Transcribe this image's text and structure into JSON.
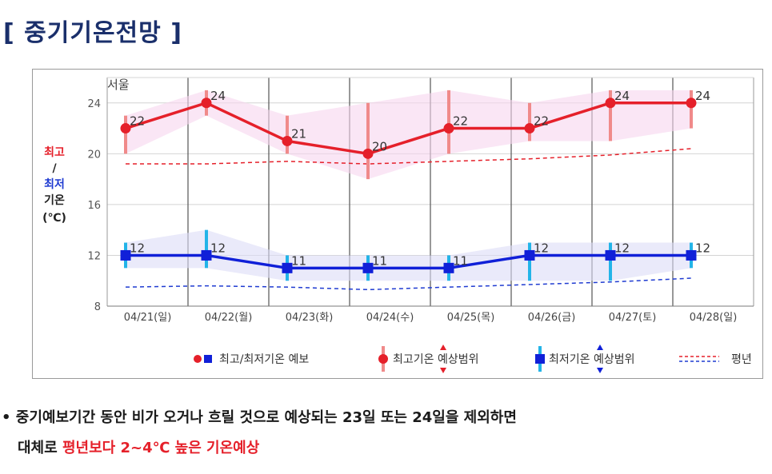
{
  "page": {
    "title": "[ 중기기온전망 ]"
  },
  "chart_data": {
    "type": "line",
    "title": "서울",
    "ylabel_lines": [
      {
        "text": "최고",
        "color": "#e5202a"
      },
      {
        "text": "/",
        "color": "#222222"
      },
      {
        "text": "최저",
        "color": "#1f3bd1"
      },
      {
        "text": "기온",
        "color": "#222222"
      },
      {
        "text": "(℃)",
        "color": "#222222"
      }
    ],
    "ylim": [
      8,
      26
    ],
    "yticks": [
      "8",
      "12",
      "16",
      "20",
      "24"
    ],
    "categories": [
      "04/21(일)",
      "04/22(월)",
      "04/23(화)",
      "04/24(수)",
      "04/25(목)",
      "04/26(금)",
      "04/27(토)",
      "04/28(일)"
    ],
    "series": [
      {
        "name": "최고기온",
        "role": "max",
        "color": "#e5202a",
        "values": [
          22,
          24,
          21,
          20,
          22,
          22,
          24,
          24
        ],
        "range_low": [
          20,
          23,
          20,
          18,
          20,
          21,
          21,
          22
        ],
        "range_high": [
          23,
          25,
          23,
          24,
          25,
          24,
          25,
          25
        ]
      },
      {
        "name": "최저기온",
        "role": "min",
        "color": "#1020d8",
        "values": [
          12,
          12,
          11,
          11,
          11,
          12,
          12,
          12
        ],
        "range_low": [
          11,
          11,
          10,
          10,
          10,
          10,
          10,
          11
        ],
        "range_high": [
          13,
          14,
          12,
          12,
          12,
          13,
          13,
          13
        ]
      }
    ],
    "normal_max": [
      19.2,
      19.2,
      19.4,
      19.2,
      19.4,
      19.6,
      19.9,
      20.4
    ],
    "normal_min": [
      9.5,
      9.6,
      9.5,
      9.3,
      9.5,
      9.7,
      9.9,
      10.2
    ],
    "legend": {
      "forecast": "최고/최저기온 예보",
      "max_range": "최고기온 예상범위",
      "min_range": "최저기온 예상범위",
      "normal": "평년"
    },
    "grid": true,
    "legend_position": "bottom"
  },
  "note": {
    "line1": "• 중기예보기간 동안 비가 오거나 흐릴 것으로 예상되는 23일 또는 24일을 제외하면",
    "line2_prefix": "대체로 ",
    "line2_highlight": "평년보다 2~4℃ 높은 기온예상"
  }
}
